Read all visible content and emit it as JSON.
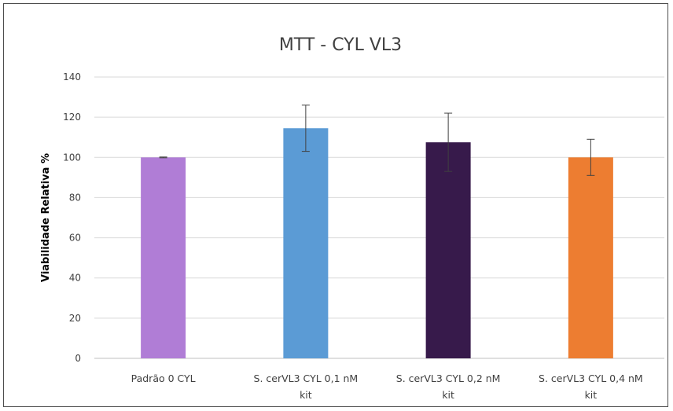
{
  "chart_data": {
    "type": "bar",
    "title": "MTT - CYL VL3",
    "xlabel": "",
    "ylabel": "Viabilidade Relativa %",
    "ylim": [
      0,
      140
    ],
    "yticks": [
      0,
      20,
      40,
      60,
      80,
      100,
      120,
      140
    ],
    "grid": true,
    "categories": [
      [
        "Padrão 0 CYL"
      ],
      [
        "S. cerVL3 CYL 0,1 nM",
        "kit"
      ],
      [
        "S. cerVL3 CYL 0,2 nM",
        "kit"
      ],
      [
        "S. cerVL3 CYL 0,4 nM",
        "kit"
      ]
    ],
    "values": [
      100,
      114.5,
      107.5,
      100
    ],
    "errors": [
      0.2,
      11.5,
      14.5,
      9
    ],
    "colors": [
      "#b07dd6",
      "#5b9bd5",
      "#371a4b",
      "#ed7d31"
    ]
  }
}
